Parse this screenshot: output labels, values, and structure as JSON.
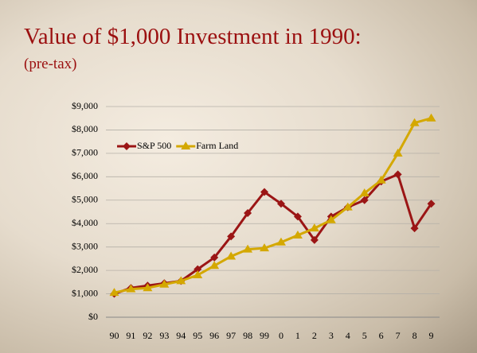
{
  "chart_data": {
    "type": "line",
    "title": "Value of $1,000 Investment in 1990:",
    "subtitle": "(pre-tax)",
    "categories": [
      "90",
      "91",
      "92",
      "93",
      "94",
      "95",
      "96",
      "97",
      "98",
      "99",
      "0",
      "1",
      "2",
      "3",
      "4",
      "5",
      "6",
      "7",
      "8",
      "9"
    ],
    "series": [
      {
        "name": "S&P 500",
        "color": "#9b1515",
        "marker": "diamond",
        "values": [
          1000,
          1250,
          1350,
          1450,
          1550,
          2050,
          2550,
          3450,
          4450,
          5350,
          4850,
          4300,
          3300,
          4300,
          4700,
          5000,
          5800,
          6100,
          3800,
          4850
        ]
      },
      {
        "name": "Farm Land",
        "color": "#d4a800",
        "marker": "triangle",
        "values": [
          1050,
          1200,
          1250,
          1400,
          1550,
          1800,
          2200,
          2600,
          2900,
          2950,
          3200,
          3500,
          3800,
          4150,
          4700,
          5300,
          5850,
          7000,
          8300,
          8500
        ]
      }
    ],
    "ylim": [
      0,
      9000
    ],
    "yticks": [
      {
        "value": 0,
        "label": "$0"
      },
      {
        "value": 1000,
        "label": "$1,000"
      },
      {
        "value": 2000,
        "label": "$2,000"
      },
      {
        "value": 3000,
        "label": "$3,000"
      },
      {
        "value": 4000,
        "label": "$4,000"
      },
      {
        "value": 5000,
        "label": "$5,000"
      },
      {
        "value": 6000,
        "label": "$6,000"
      },
      {
        "value": 7000,
        "label": "$7,000"
      },
      {
        "value": 8000,
        "label": "$8,000"
      },
      {
        "value": 9000,
        "label": "$9,000"
      }
    ],
    "grid": true
  }
}
